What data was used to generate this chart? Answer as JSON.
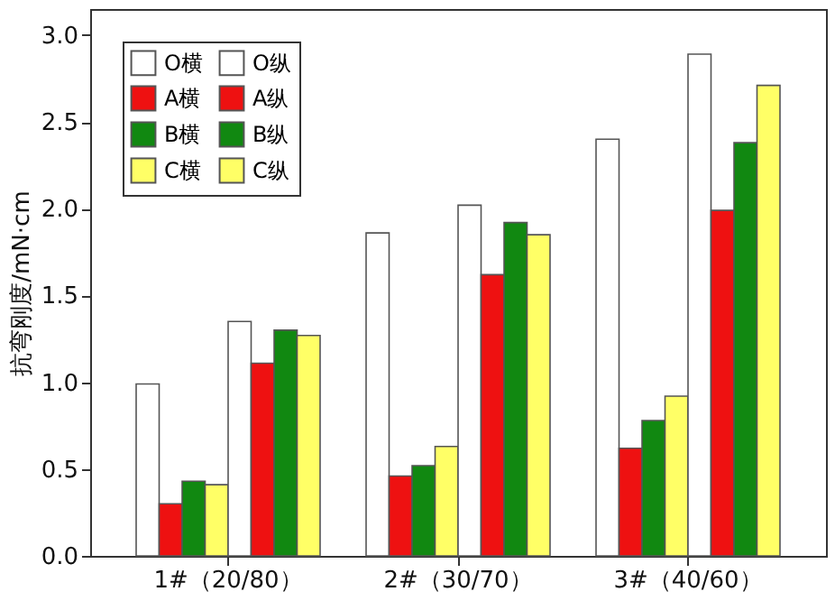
{
  "chart_data": {
    "type": "bar",
    "ylabel": "抗弯刚度/mN·cm",
    "categories": [
      "1#（20/80）",
      "2#（30/70）",
      "3#（40/60）"
    ],
    "series": [
      {
        "name": "O横",
        "color": "#ffffff",
        "values": [
          0.99,
          1.86,
          2.4
        ]
      },
      {
        "name": "A横",
        "color": "#ee1111",
        "values": [
          0.3,
          0.46,
          0.62
        ]
      },
      {
        "name": "B横",
        "color": "#118811",
        "values": [
          0.43,
          0.52,
          0.78
        ]
      },
      {
        "name": "C横",
        "color": "#ffff66",
        "values": [
          0.41,
          0.63,
          0.92
        ]
      },
      {
        "name": "O纵",
        "color": "#ffffff",
        "values": [
          1.35,
          2.02,
          2.89
        ]
      },
      {
        "name": "A纵",
        "color": "#ee1111",
        "values": [
          1.11,
          1.62,
          1.99
        ]
      },
      {
        "name": "B纵",
        "color": "#118811",
        "values": [
          1.3,
          1.92,
          2.38
        ]
      },
      {
        "name": "C纵",
        "color": "#ffff66",
        "values": [
          1.27,
          1.85,
          2.71
        ]
      }
    ],
    "ylim": [
      0,
      3.15
    ],
    "yticks": [
      {
        "value": 0,
        "label": "0.0"
      },
      {
        "value": 0.5,
        "label": "0.5"
      },
      {
        "value": 1,
        "label": "1.0"
      },
      {
        "value": 1.5,
        "label": "1.5"
      },
      {
        "value": 2,
        "label": "2.0"
      },
      {
        "value": 2.5,
        "label": "2.5"
      },
      {
        "value": 3,
        "label": "3.0"
      }
    ],
    "grid": false,
    "legend": "top left"
  }
}
